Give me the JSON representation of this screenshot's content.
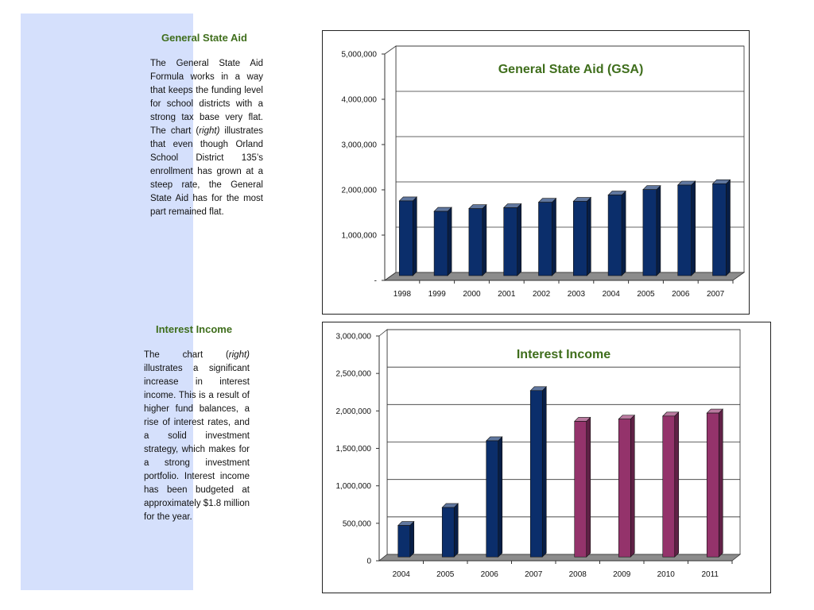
{
  "sidebar": {
    "gsa_title": "General State Aid",
    "gsa_text": [
      {
        "t": "The General State Aid Formula works in a way that keeps the funding level for school districts with a strong tax base very flat.  The chart ("
      },
      {
        "t": "right)",
        "i": true
      },
      {
        "t": " illustrates that even though Orland School District 135’s enrollment has grown at a steep rate, the General State Aid has for the most part remained flat."
      }
    ],
    "interest_title": "Interest Income",
    "interest_text": [
      {
        "t": "The chart ("
      },
      {
        "t": "right)",
        "i": true
      },
      {
        "t": " illustrates a significant increase in interest income.  This is a result of higher fund balances, a rise of interest rates, and a solid investment strategy, which makes for a strong investment portfolio. Interest income has been budgeted at approximately $1.8 million for the year."
      }
    ]
  },
  "colors": {
    "navy": "#0b2e6b",
    "plum": "#94336b",
    "title_green": "#3f6e1c",
    "panel": "#d5e0fc"
  },
  "chart_data": [
    {
      "type": "bar",
      "title": "General State Aid (GSA)",
      "categories": [
        "1998",
        "1999",
        "2000",
        "2001",
        "2002",
        "2003",
        "2004",
        "2005",
        "2006",
        "2007"
      ],
      "values": [
        1650000,
        1420000,
        1480000,
        1500000,
        1620000,
        1640000,
        1780000,
        1900000,
        2000000,
        2030000
      ],
      "ylim": [
        0,
        5000000
      ],
      "yticks": [
        0,
        1000000,
        2000000,
        3000000,
        4000000,
        5000000
      ],
      "ytick_labels": [
        "-",
        "1,000,000",
        "2,000,000",
        "3,000,000",
        "4,000,000",
        "5,000,000"
      ],
      "bar_colors": [
        "#0b2e6b",
        "#0b2e6b",
        "#0b2e6b",
        "#0b2e6b",
        "#0b2e6b",
        "#0b2e6b",
        "#0b2e6b",
        "#0b2e6b",
        "#0b2e6b",
        "#0b2e6b"
      ],
      "grid": true,
      "style": "3d"
    },
    {
      "type": "bar",
      "title": "Interest Income",
      "categories": [
        "2004",
        "2005",
        "2006",
        "2007",
        "2008",
        "2009",
        "2010",
        "2011"
      ],
      "values": [
        420000,
        660000,
        1550000,
        2220000,
        1810000,
        1840000,
        1880000,
        1920000
      ],
      "ylim": [
        0,
        3000000
      ],
      "yticks": [
        0,
        500000,
        1000000,
        1500000,
        2000000,
        2500000,
        3000000
      ],
      "ytick_labels": [
        "0",
        "500,000",
        "1,000,000",
        "1,500,000",
        "2,000,000",
        "2,500,000",
        "3,000,000"
      ],
      "bar_colors": [
        "#0b2e6b",
        "#0b2e6b",
        "#0b2e6b",
        "#0b2e6b",
        "#94336b",
        "#94336b",
        "#94336b",
        "#94336b"
      ],
      "grid": true,
      "style": "3d"
    }
  ]
}
